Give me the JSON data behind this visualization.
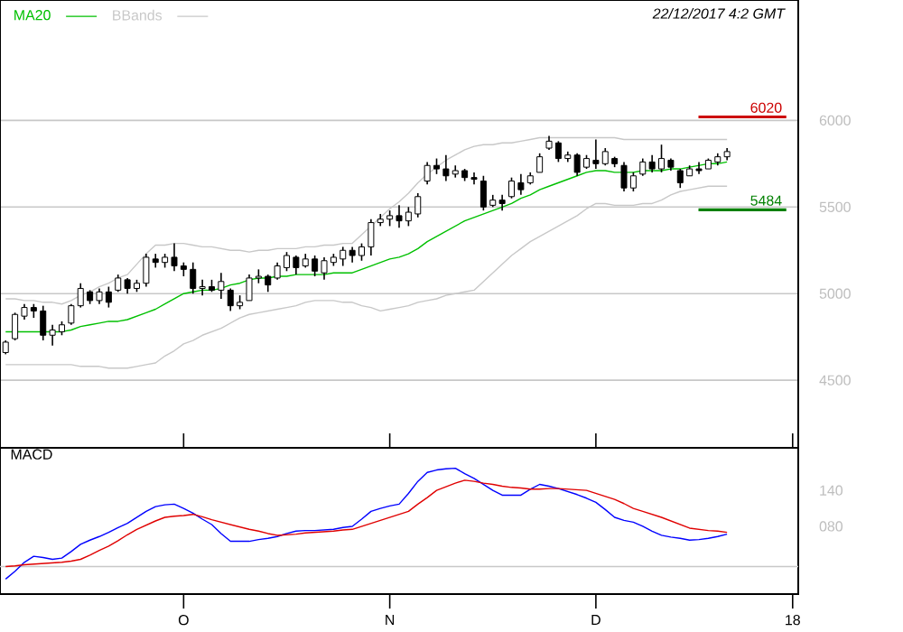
{
  "chart_data": [
    {
      "type": "candlestick",
      "annotations": [
        "22/12/2017 4:2 GMT"
      ],
      "legend": "top left",
      "grid": "y",
      "tick_labels": "y",
      "categories": [
        null,
        null,
        null,
        null,
        null,
        null,
        null,
        null,
        null,
        null,
        null,
        null,
        null,
        null,
        null,
        null,
        null,
        null,
        null,
        null,
        null,
        null,
        null,
        null,
        null,
        null,
        null,
        null,
        null,
        null,
        null,
        null,
        null,
        null,
        null,
        null,
        null,
        null,
        null,
        null,
        null,
        null,
        null,
        null,
        null,
        null,
        null,
        null,
        null,
        null,
        null,
        null,
        null,
        null,
        null,
        null,
        null,
        null,
        null,
        null,
        null,
        null,
        null,
        null,
        null,
        null,
        null,
        null,
        null,
        null,
        null,
        null,
        null,
        null,
        null,
        null,
        null,
        null,
        null,
        null,
        null,
        null,
        null,
        null,
        null
      ],
      "ylim": [
        4110,
        6695
      ],
      "yticks": [
        4500,
        5000,
        5500,
        6000
      ],
      "ohlc": [
        [
          4660,
          4730,
          4650,
          4720
        ],
        [
          4740,
          4890,
          4730,
          4880
        ],
        [
          4870,
          4940,
          4850,
          4920
        ],
        [
          4920,
          4940,
          4860,
          4900
        ],
        [
          4900,
          4930,
          4730,
          4760
        ],
        [
          4760,
          4820,
          4700,
          4790
        ],
        [
          4780,
          4840,
          4760,
          4820
        ],
        [
          4830,
          4940,
          4820,
          4930
        ],
        [
          4930,
          5060,
          4920,
          5030
        ],
        [
          5010,
          5020,
          4940,
          4960
        ],
        [
          4960,
          5030,
          4940,
          5010
        ],
        [
          5010,
          5040,
          4920,
          4950
        ],
        [
          5020,
          5110,
          5010,
          5090
        ],
        [
          5080,
          5090,
          5000,
          5030
        ],
        [
          5030,
          5080,
          5010,
          5060
        ],
        [
          5060,
          5230,
          5040,
          5210
        ],
        [
          5200,
          5230,
          5150,
          5180
        ],
        [
          5180,
          5230,
          5150,
          5210
        ],
        [
          5210,
          5290,
          5130,
          5160
        ],
        [
          5160,
          5180,
          5100,
          5140
        ],
        [
          5140,
          5180,
          5000,
          5030
        ],
        [
          5030,
          5080,
          4990,
          5040
        ],
        [
          5040,
          5080,
          5010,
          5020
        ],
        [
          5020,
          5120,
          4970,
          5070
        ],
        [
          5020,
          5030,
          4900,
          4930
        ],
        [
          4930,
          4990,
          4910,
          4950
        ],
        [
          4960,
          5110,
          4960,
          5090
        ],
        [
          5090,
          5140,
          5060,
          5100
        ],
        [
          5100,
          5110,
          5010,
          5050
        ],
        [
          5090,
          5180,
          5080,
          5160
        ],
        [
          5150,
          5240,
          5130,
          5220
        ],
        [
          5210,
          5220,
          5110,
          5150
        ],
        [
          5160,
          5230,
          5150,
          5200
        ],
        [
          5200,
          5220,
          5100,
          5130
        ],
        [
          5120,
          5210,
          5080,
          5190
        ],
        [
          5180,
          5230,
          5160,
          5210
        ],
        [
          5200,
          5270,
          5160,
          5250
        ],
        [
          5250,
          5270,
          5180,
          5220
        ],
        [
          5220,
          5290,
          5190,
          5270
        ],
        [
          5270,
          5430,
          5220,
          5410
        ],
        [
          5410,
          5460,
          5390,
          5430
        ],
        [
          5430,
          5480,
          5390,
          5450
        ],
        [
          5450,
          5510,
          5380,
          5420
        ],
        [
          5420,
          5500,
          5390,
          5470
        ],
        [
          5460,
          5580,
          5440,
          5560
        ],
        [
          5650,
          5760,
          5630,
          5740
        ],
        [
          5740,
          5780,
          5690,
          5720
        ],
        [
          5720,
          5800,
          5650,
          5680
        ],
        [
          5690,
          5740,
          5670,
          5710
        ],
        [
          5710,
          5720,
          5650,
          5670
        ],
        [
          5670,
          5700,
          5630,
          5660
        ],
        [
          5650,
          5680,
          5480,
          5500
        ],
        [
          5510,
          5570,
          5500,
          5540
        ],
        [
          5540,
          5570,
          5480,
          5520
        ],
        [
          5560,
          5670,
          5550,
          5650
        ],
        [
          5640,
          5690,
          5570,
          5600
        ],
        [
          5640,
          5700,
          5630,
          5680
        ],
        [
          5700,
          5810,
          5700,
          5790
        ],
        [
          5840,
          5910,
          5830,
          5880
        ],
        [
          5870,
          5880,
          5760,
          5780
        ],
        [
          5780,
          5820,
          5760,
          5800
        ],
        [
          5800,
          5810,
          5680,
          5700
        ],
        [
          5730,
          5800,
          5720,
          5780
        ],
        [
          5770,
          5890,
          5720,
          5750
        ],
        [
          5750,
          5840,
          5740,
          5820
        ],
        [
          5780,
          5790,
          5730,
          5750
        ],
        [
          5740,
          5760,
          5590,
          5610
        ],
        [
          5610,
          5700,
          5590,
          5680
        ],
        [
          5690,
          5780,
          5680,
          5760
        ],
        [
          5760,
          5800,
          5700,
          5720
        ],
        [
          5720,
          5860,
          5700,
          5780
        ],
        [
          5770,
          5780,
          5710,
          5730
        ],
        [
          5710,
          5720,
          5610,
          5640
        ],
        [
          5680,
          5740,
          5680,
          5720
        ],
        [
          5720,
          5760,
          5690,
          5710
        ],
        [
          5720,
          5780,
          5720,
          5770
        ],
        [
          5760,
          5810,
          5740,
          5790
        ],
        [
          5790,
          5840,
          5770,
          5820
        ],
        null,
        null,
        null,
        null,
        null,
        null,
        null
      ],
      "series": [
        {
          "type": "line",
          "name": "MA20",
          "color": "#00c000",
          "values": [
            4780,
            4780,
            4780,
            4780,
            4780,
            4780,
            4780,
            4790,
            4810,
            4820,
            4830,
            4840,
            4840,
            4850,
            4870,
            4890,
            4910,
            4940,
            4970,
            5000,
            5010,
            5020,
            5020,
            5030,
            5050,
            5060,
            5080,
            5090,
            5090,
            5100,
            5100,
            5110,
            5110,
            5110,
            5110,
            5120,
            5120,
            5120,
            5140,
            5160,
            5180,
            5200,
            5210,
            5230,
            5260,
            5300,
            5330,
            5360,
            5390,
            5420,
            5440,
            5460,
            5480,
            5500,
            5520,
            5550,
            5570,
            5600,
            5620,
            5640,
            5660,
            5680,
            5700,
            5710,
            5710,
            5700,
            5700,
            5700,
            5710,
            5710,
            5710,
            5720,
            5720,
            5730,
            5740,
            5750,
            5750,
            5760,
            null,
            null,
            null,
            null,
            null,
            null,
            null
          ]
        },
        {
          "type": "line",
          "name": "BBands",
          "color": "#c8c8c8",
          "values": [
            4970,
            4970,
            4960,
            4960,
            4950,
            4950,
            4940,
            4960,
            4990,
            5010,
            5040,
            5060,
            5090,
            5110,
            5170,
            5230,
            5280,
            5280,
            5290,
            5290,
            5280,
            5270,
            5270,
            5260,
            5250,
            5250,
            5240,
            5250,
            5250,
            5260,
            5260,
            5260,
            5270,
            5270,
            5280,
            5280,
            5290,
            5290,
            5340,
            5390,
            5440,
            5490,
            5530,
            5580,
            5640,
            5690,
            5730,
            5770,
            5800,
            5830,
            5850,
            5860,
            5860,
            5870,
            5870,
            5880,
            5890,
            5900,
            5900,
            5900,
            5900,
            5900,
            5900,
            5900,
            5900,
            5900,
            5890,
            5890,
            5890,
            5890,
            5890,
            5890,
            5890,
            5890,
            5890,
            5890,
            5890,
            5890,
            null,
            null,
            null,
            null,
            null,
            null,
            null
          ]
        },
        {
          "type": "line",
          "color": "#c8c8c8",
          "values": [
            4590,
            4590,
            4590,
            4590,
            4590,
            4590,
            4590,
            4590,
            4580,
            4580,
            4580,
            4570,
            4570,
            4570,
            4580,
            4590,
            4600,
            4640,
            4670,
            4710,
            4730,
            4760,
            4780,
            4800,
            4830,
            4860,
            4880,
            4890,
            4900,
            4910,
            4920,
            4930,
            4950,
            4960,
            4960,
            4960,
            4950,
            4950,
            4930,
            4920,
            4900,
            4910,
            4920,
            4930,
            4950,
            4960,
            4970,
            4990,
            5000,
            5010,
            5020,
            5070,
            5120,
            5170,
            5220,
            5260,
            5300,
            5330,
            5360,
            5390,
            5420,
            5450,
            5490,
            5520,
            5520,
            5510,
            5510,
            5510,
            5520,
            5520,
            5540,
            5570,
            5590,
            5600,
            5610,
            5620,
            5620,
            5620,
            null,
            null,
            null,
            null,
            null,
            null,
            null
          ]
        }
      ],
      "ref_lines": [
        {
          "axis": "y",
          "value": 6020,
          "label": "6020",
          "color": "#cc0000"
        },
        {
          "axis": "y",
          "value": 5484,
          "label": "5484",
          "color": "#008000"
        }
      ]
    },
    {
      "type": "line",
      "title": "MACD",
      "categories": [
        null,
        null,
        null,
        null,
        null,
        null,
        null,
        null,
        null,
        null,
        null,
        null,
        null,
        null,
        null,
        null,
        null,
        null,
        null,
        "O",
        null,
        null,
        null,
        null,
        null,
        null,
        null,
        null,
        null,
        null,
        null,
        null,
        null,
        null,
        null,
        null,
        null,
        null,
        null,
        null,
        null,
        "N",
        null,
        null,
        null,
        null,
        null,
        null,
        null,
        null,
        null,
        null,
        null,
        null,
        null,
        null,
        null,
        null,
        null,
        null,
        null,
        null,
        null,
        "D",
        null,
        null,
        null,
        null,
        null,
        null,
        null,
        null,
        null,
        null,
        null,
        null,
        null,
        null,
        null,
        null,
        null,
        null,
        null,
        null,
        "18"
      ],
      "ylim": [
        -33,
        211
      ],
      "yticks": [
        {
          "value": 80,
          "label": "080"
        },
        140
      ],
      "series": [
        {
          "color": "#0000ff",
          "values": [
            -8,
            5,
            20,
            30,
            28,
            25,
            27,
            38,
            50,
            57,
            63,
            70,
            78,
            85,
            95,
            105,
            113,
            116,
            117,
            110,
            102,
            92,
            83,
            68,
            55,
            55,
            55,
            58,
            60,
            63,
            68,
            72,
            73,
            73,
            74,
            75,
            78,
            80,
            92,
            105,
            110,
            114,
            117,
            135,
            155,
            170,
            174,
            176,
            177,
            168,
            160,
            150,
            140,
            132,
            132,
            132,
            142,
            150,
            147,
            143,
            138,
            133,
            127,
            120,
            108,
            95,
            90,
            87,
            80,
            72,
            65,
            62,
            60,
            57,
            58,
            60,
            63,
            67,
            null,
            null,
            null,
            null,
            null,
            null,
            null
          ]
        },
        {
          "color": "#e00000",
          "values": [
            13,
            14,
            16,
            17,
            18,
            19,
            20,
            22,
            25,
            32,
            40,
            47,
            56,
            66,
            75,
            82,
            89,
            95,
            97,
            98,
            100,
            96,
            91,
            87,
            83,
            79,
            75,
            72,
            68,
            65,
            66,
            67,
            69,
            70,
            71,
            72,
            74,
            75,
            80,
            85,
            90,
            95,
            100,
            105,
            117,
            128,
            140,
            146,
            152,
            157,
            155,
            152,
            150,
            147,
            145,
            144,
            142,
            142,
            143,
            143,
            142,
            141,
            140,
            135,
            130,
            125,
            118,
            110,
            105,
            100,
            95,
            89,
            83,
            77,
            75,
            73,
            72,
            70,
            null,
            null,
            null,
            null,
            null,
            null,
            null
          ]
        }
      ],
      "ref_lines": [
        {
          "axis": "y",
          "value": 13,
          "color": "#c8c8c8"
        }
      ]
    }
  ]
}
